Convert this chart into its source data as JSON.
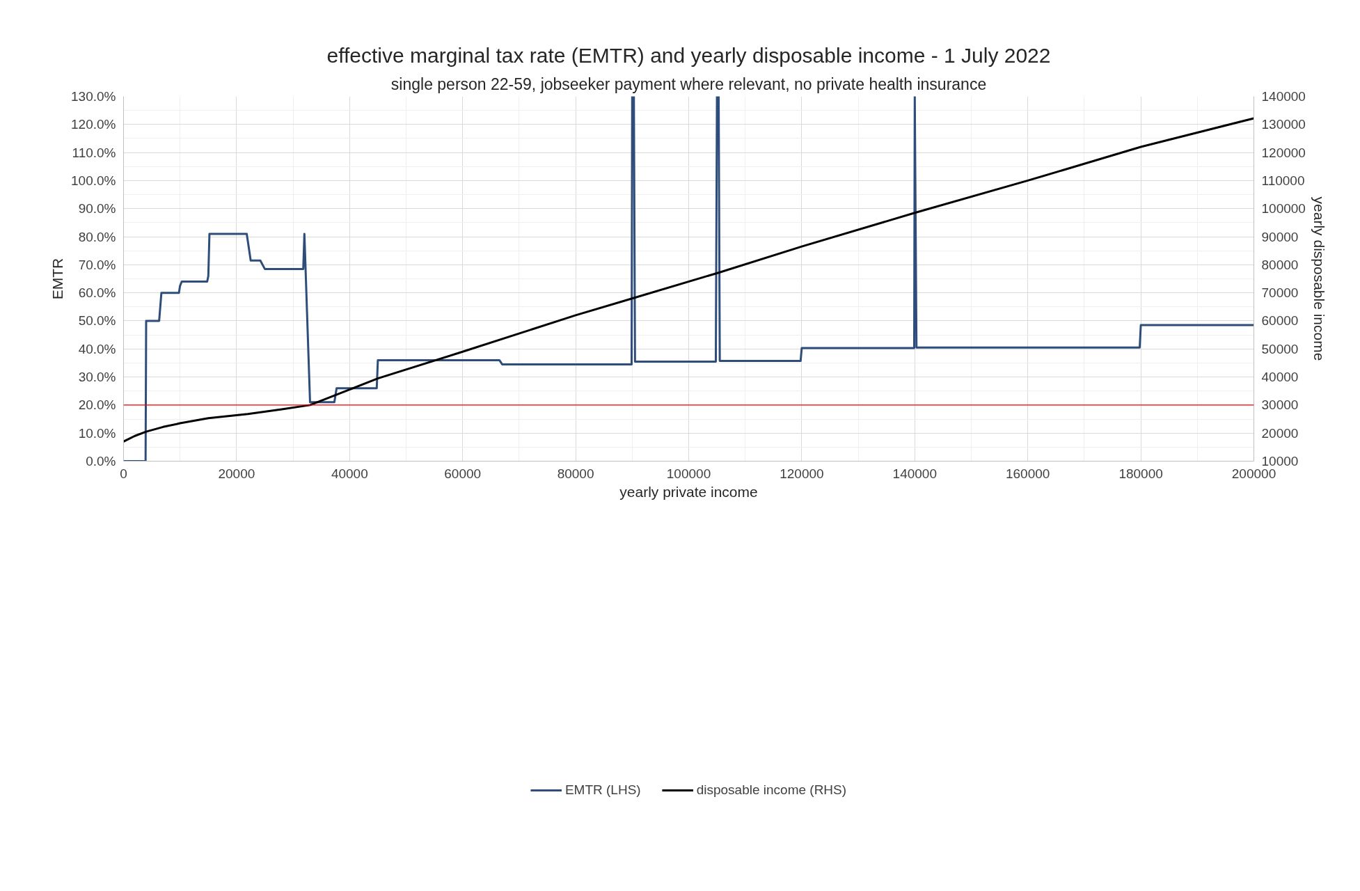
{
  "chart_data": {
    "type": "line",
    "title": "effective marginal tax rate (EMTR) and yearly disposable income - 1 July 2022",
    "subtitle": "single person 22-59, jobseeker payment where relevant, no private health insurance",
    "xlabel": "yearly private income",
    "ylabel": "EMTR",
    "y2label": "yearly disposable income",
    "xlim": [
      0,
      200000
    ],
    "xticks": [
      0,
      20000,
      40000,
      60000,
      80000,
      100000,
      120000,
      140000,
      160000,
      180000,
      200000
    ],
    "ylim": [
      0,
      130
    ],
    "yticks": [
      {
        "value": 0,
        "label": "0.0%"
      },
      {
        "value": 10,
        "label": "10.0%"
      },
      {
        "value": 20,
        "label": "20.0%"
      },
      {
        "value": 30,
        "label": "30.0%"
      },
      {
        "value": 40,
        "label": "40.0%"
      },
      {
        "value": 50,
        "label": "50.0%"
      },
      {
        "value": 60,
        "label": "60.0%"
      },
      {
        "value": 70,
        "label": "70.0%"
      },
      {
        "value": 80,
        "label": "80.0%"
      },
      {
        "value": 90,
        "label": "90.0%"
      },
      {
        "value": 100,
        "label": "100.0%"
      },
      {
        "value": 110,
        "label": "110.0%"
      },
      {
        "value": 120,
        "label": "120.0%"
      },
      {
        "value": 130,
        "label": "130.0%"
      }
    ],
    "y2lim": [
      10000,
      140000
    ],
    "y2ticks": [
      10000,
      20000,
      30000,
      40000,
      50000,
      60000,
      70000,
      80000,
      90000,
      100000,
      110000,
      120000,
      130000,
      140000
    ],
    "grid": true,
    "legend": "bottom",
    "ref_lines": [
      {
        "axis": "y",
        "value": 20,
        "color": "#ff0000"
      }
    ],
    "series": [
      {
        "name": "EMTR (LHS)",
        "color": "#2e4d7b",
        "x": [
          0,
          3900,
          4000,
          6300,
          6700,
          9800,
          10000,
          10300,
          14800,
          15000,
          15200,
          21800,
          22500,
          24200,
          25000,
          31800,
          32000,
          33000,
          37300,
          37700,
          44800,
          45000,
          66500,
          67000,
          89900,
          90000,
          90300,
          90500,
          104800,
          105000,
          105300,
          105500,
          119800,
          120000,
          139900,
          140000,
          140300,
          179800,
          180000,
          200000
        ],
        "values": [
          0,
          0,
          50,
          50,
          60,
          60,
          62.5,
          64,
          64,
          66,
          81,
          81,
          71.5,
          71.5,
          68.5,
          68.5,
          81,
          21,
          21,
          26,
          26,
          36,
          36,
          34.5,
          34.5,
          130,
          130,
          35.5,
          35.5,
          130,
          130,
          35.7,
          35.7,
          40.3,
          40.3,
          130,
          40.5,
          40.5,
          48.5,
          48.5
        ]
      },
      {
        "name": "disposable income (RHS)",
        "color": "#000000",
        "axis": "y2",
        "x": [
          0,
          2000,
          4000,
          7000,
          10000,
          15000,
          22000,
          28000,
          33000,
          40000,
          45000,
          60000,
          80000,
          90000,
          105000,
          120000,
          140000,
          160000,
          180000,
          200000
        ],
        "values": [
          17000,
          19000,
          20500,
          22200,
          23500,
          25300,
          26800,
          28500,
          30000,
          35500,
          39500,
          49000,
          62000,
          68000,
          77000,
          86500,
          98500,
          110000,
          122000,
          132200
        ]
      }
    ]
  }
}
